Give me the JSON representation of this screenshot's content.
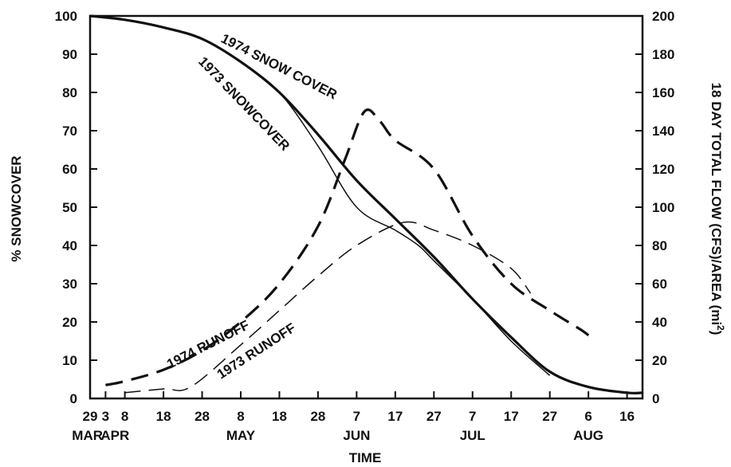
{
  "chart_data": {
    "type": "line",
    "title": "",
    "xlabel": "TIME",
    "ylabel": "% SNOWCOVER",
    "y2label": "18 DAY TOTAL FLOW (CFS)/AREA (mi",
    "y2label_sup": "2",
    "y2label_close": ")",
    "ylim": [
      0,
      100
    ],
    "y2lim": [
      0,
      200
    ],
    "xlim": [
      29,
      172
    ],
    "yticks": [
      "0",
      "10",
      "20",
      "30",
      "40",
      "50",
      "60",
      "70",
      "80",
      "90",
      "100"
    ],
    "y2ticks": [
      "0",
      "20",
      "40",
      "60",
      "80",
      "100",
      "120",
      "140",
      "160",
      "180",
      "200"
    ],
    "xticks": [
      {
        "day": 29,
        "label": "29"
      },
      {
        "day": 33,
        "label": "3"
      },
      {
        "day": 38,
        "label": "8"
      },
      {
        "day": 48,
        "label": "18"
      },
      {
        "day": 58,
        "label": "28"
      },
      {
        "day": 68,
        "label": "8"
      },
      {
        "day": 78,
        "label": "18"
      },
      {
        "day": 88,
        "label": "28"
      },
      {
        "day": 98,
        "label": "7"
      },
      {
        "day": 108,
        "label": "17"
      },
      {
        "day": 118,
        "label": "27"
      },
      {
        "day": 128,
        "label": "7"
      },
      {
        "day": 138,
        "label": "17"
      },
      {
        "day": 148,
        "label": "27"
      },
      {
        "day": 158,
        "label": "6"
      },
      {
        "day": 168,
        "label": "16"
      }
    ],
    "months": [
      {
        "day": 29,
        "label": "MAR"
      },
      {
        "day": 33,
        "label": "APR"
      },
      {
        "day": 68,
        "label": "MAY"
      },
      {
        "day": 98,
        "label": "JUN"
      },
      {
        "day": 128,
        "label": "JUL"
      },
      {
        "day": 158,
        "label": "AUG"
      }
    ],
    "series": [
      {
        "name": "1974 SNOW COVER",
        "axis": "left",
        "style": "solid-thick",
        "points": [
          [
            29,
            100
          ],
          [
            38,
            99
          ],
          [
            48,
            97
          ],
          [
            58,
            94
          ],
          [
            68,
            88
          ],
          [
            78,
            80
          ],
          [
            88,
            69
          ],
          [
            98,
            57
          ],
          [
            108,
            47
          ],
          [
            118,
            37
          ],
          [
            128,
            26
          ],
          [
            138,
            16
          ],
          [
            148,
            7
          ],
          [
            158,
            3
          ],
          [
            168,
            1.5
          ],
          [
            172,
            1.5
          ]
        ]
      },
      {
        "name": "1973 SNOWCOVER",
        "axis": "left",
        "style": "solid-thin",
        "points": [
          [
            29,
            100
          ],
          [
            38,
            99
          ],
          [
            48,
            97
          ],
          [
            58,
            94
          ],
          [
            68,
            88
          ],
          [
            78,
            80
          ],
          [
            88,
            66
          ],
          [
            98,
            50
          ],
          [
            108,
            44
          ],
          [
            114,
            40
          ],
          [
            118,
            36
          ],
          [
            128,
            26
          ],
          [
            138,
            15
          ],
          [
            148,
            6
          ]
        ]
      },
      {
        "name": "1974 RUNOFF",
        "axis": "right",
        "style": "dashed-thick",
        "points": [
          [
            33,
            7
          ],
          [
            38,
            9
          ],
          [
            48,
            15
          ],
          [
            58,
            25
          ],
          [
            68,
            40
          ],
          [
            78,
            60
          ],
          [
            88,
            90
          ],
          [
            95,
            125
          ],
          [
            100,
            150
          ],
          [
            104,
            145
          ],
          [
            108,
            135
          ],
          [
            118,
            120
          ],
          [
            128,
            85
          ],
          [
            138,
            60
          ],
          [
            148,
            46
          ],
          [
            156,
            36
          ],
          [
            158,
            33
          ]
        ]
      },
      {
        "name": "1973 RUNOFF",
        "axis": "right",
        "style": "dashed-thin",
        "points": [
          [
            38,
            3
          ],
          [
            48,
            5
          ],
          [
            55,
            6
          ],
          [
            68,
            28
          ],
          [
            78,
            46
          ],
          [
            88,
            64
          ],
          [
            98,
            80
          ],
          [
            110,
            92
          ],
          [
            118,
            88
          ],
          [
            128,
            80
          ],
          [
            138,
            68
          ],
          [
            143,
            55
          ]
        ]
      }
    ],
    "annotations": [
      {
        "text": "1974  SNOW COVER",
        "series": "1974 SNOW COVER"
      },
      {
        "text": "1973  SNOWCOVER",
        "series": "1973 SNOWCOVER"
      },
      {
        "text": "1974   RUNOFF",
        "series": "1974 RUNOFF"
      },
      {
        "text": "1973  RUNOFF",
        "series": "1973 RUNOFF"
      }
    ]
  }
}
